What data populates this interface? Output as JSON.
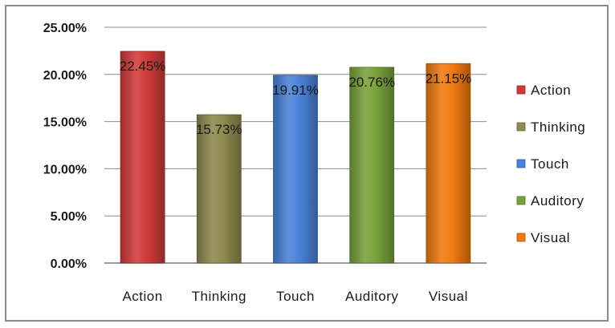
{
  "chart_data": {
    "type": "bar",
    "categories": [
      "Action",
      "Thinking",
      "Touch",
      "Auditory",
      "Visual"
    ],
    "values": [
      22.45,
      15.73,
      19.91,
      20.76,
      21.15
    ],
    "data_labels": [
      "22.45%",
      "15.73%",
      "19.91%",
      "20.76%",
      "21.15%"
    ],
    "colors": [
      "#d23a3a",
      "#8f8a4e",
      "#4a82d8",
      "#78a23c",
      "#f07a10"
    ],
    "title": "",
    "xlabel": "",
    "ylabel": "",
    "ylim": [
      0,
      25
    ],
    "yticks": [
      0,
      5,
      10,
      15,
      20,
      25
    ],
    "ytick_labels": [
      "0.00%",
      "5.00%",
      "10.00%",
      "15.00%",
      "20.00%",
      "25.00%"
    ],
    "grid": true,
    "legend": {
      "placement": "right",
      "entries": [
        "Action",
        "Thinking",
        "Touch",
        "Auditory",
        "Visual"
      ]
    }
  }
}
